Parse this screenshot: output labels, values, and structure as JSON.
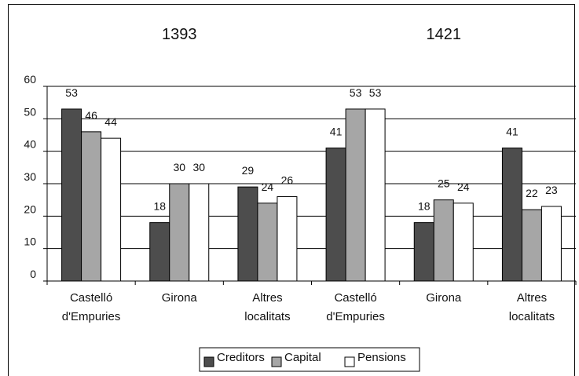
{
  "chart_data": {
    "type": "bar",
    "groups": [
      "1393",
      "1421"
    ],
    "categories": [
      [
        "Castelló",
        "d'Empuries"
      ],
      [
        "Girona"
      ],
      [
        "Altres",
        "localitats"
      ],
      [
        "Castelló",
        "d'Empuries"
      ],
      [
        "Girona"
      ],
      [
        "Altres",
        "localitats"
      ]
    ],
    "series": [
      {
        "name": "Creditors",
        "color": "#4d4d4d",
        "values": [
          53,
          18,
          29,
          41,
          18,
          41
        ]
      },
      {
        "name": "Capital",
        "color": "#a6a6a6",
        "values": [
          46,
          30,
          24,
          53,
          25,
          22
        ]
      },
      {
        "name": "Pensions",
        "color": "#ffffff",
        "values": [
          44,
          30,
          26,
          53,
          24,
          23
        ]
      }
    ],
    "ylim": [
      0,
      60
    ],
    "yticks": [
      0,
      10,
      20,
      30,
      40,
      50,
      60
    ],
    "grid": true,
    "legend_position": "bottom-center"
  }
}
